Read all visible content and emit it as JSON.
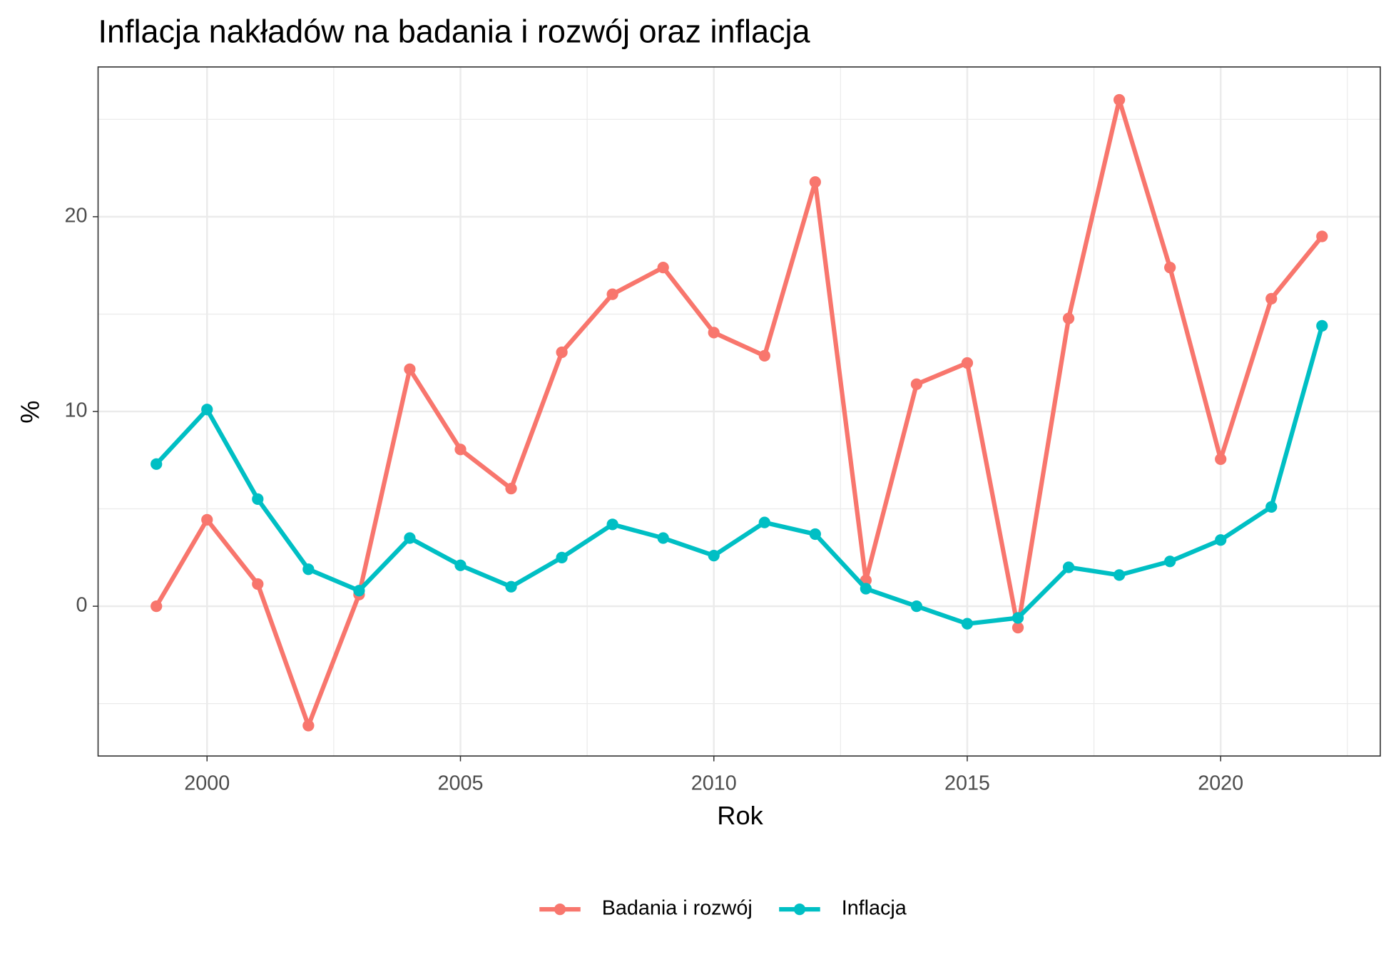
{
  "chart_data": {
    "type": "line",
    "title": "Inflacja nakładów na badania i rozwój oraz inflacja",
    "x_label": "Rok",
    "y_label": "%",
    "x": [
      1999,
      2000,
      2001,
      2002,
      2003,
      2004,
      2005,
      2006,
      2007,
      2008,
      2009,
      2010,
      2011,
      2012,
      2013,
      2014,
      2015,
      2016,
      2017,
      2018,
      2019,
      2020,
      2021,
      2022
    ],
    "series": [
      {
        "name": "Badania i rozwój",
        "color": "#F8766D",
        "values": [
          0,
          4.44,
          1.14,
          -6.13,
          0.6,
          12.17,
          8.05,
          6.04,
          13.04,
          16.02,
          17.39,
          14.05,
          12.86,
          21.78,
          1.33,
          11.4,
          12.49,
          -1.1,
          14.78,
          26.0,
          17.39,
          7.55,
          15.79,
          18.99
        ]
      },
      {
        "name": "Inflacja",
        "color": "#00BFC4",
        "values": [
          7.3,
          10.1,
          5.5,
          1.9,
          0.8,
          3.5,
          2.1,
          1.0,
          2.5,
          4.2,
          3.5,
          2.6,
          4.3,
          3.7,
          0.9,
          0.0,
          -0.9,
          -0.6,
          2.0,
          1.6,
          2.3,
          3.4,
          5.1,
          14.4
        ]
      }
    ],
    "xlim": [
      1997.85,
      2023.15
    ],
    "xticks": [
      2000,
      2005,
      2010,
      2015,
      2020
    ],
    "ylim": [
      -7.69,
      27.69
    ],
    "yticks": [
      0,
      10,
      20
    ],
    "grid": true,
    "legend": "bottom"
  }
}
